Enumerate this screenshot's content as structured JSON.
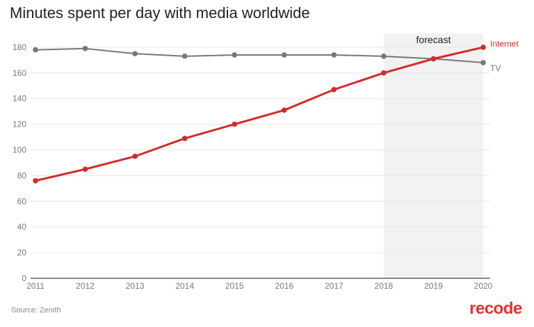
{
  "title": "Minutes spent per day with media worldwide",
  "source": "Source: Zenith",
  "logo": "recode",
  "chart_data": {
    "type": "line",
    "title": "Minutes spent per day with media worldwide",
    "xlabel": "",
    "ylabel": "",
    "x": [
      2011,
      2012,
      2013,
      2014,
      2015,
      2016,
      2017,
      2018,
      2019,
      2020
    ],
    "ylim": [
      0,
      190
    ],
    "yticks": [
      0,
      20,
      40,
      60,
      80,
      100,
      120,
      140,
      160,
      180
    ],
    "grid": true,
    "series": [
      {
        "name": "Internet",
        "color": "#d42a2a",
        "values": [
          76,
          85,
          95,
          109,
          120,
          131,
          147,
          160,
          171,
          180
        ]
      },
      {
        "name": "TV",
        "color": "#777777",
        "values": [
          178,
          179,
          175,
          173,
          174,
          174,
          174,
          173,
          171,
          168
        ]
      }
    ],
    "annotations": [
      {
        "text": "forecast",
        "x_range": [
          2018,
          2020
        ],
        "shade": "#f2f2f2"
      }
    ],
    "legend": "inline labels at line ends"
  }
}
